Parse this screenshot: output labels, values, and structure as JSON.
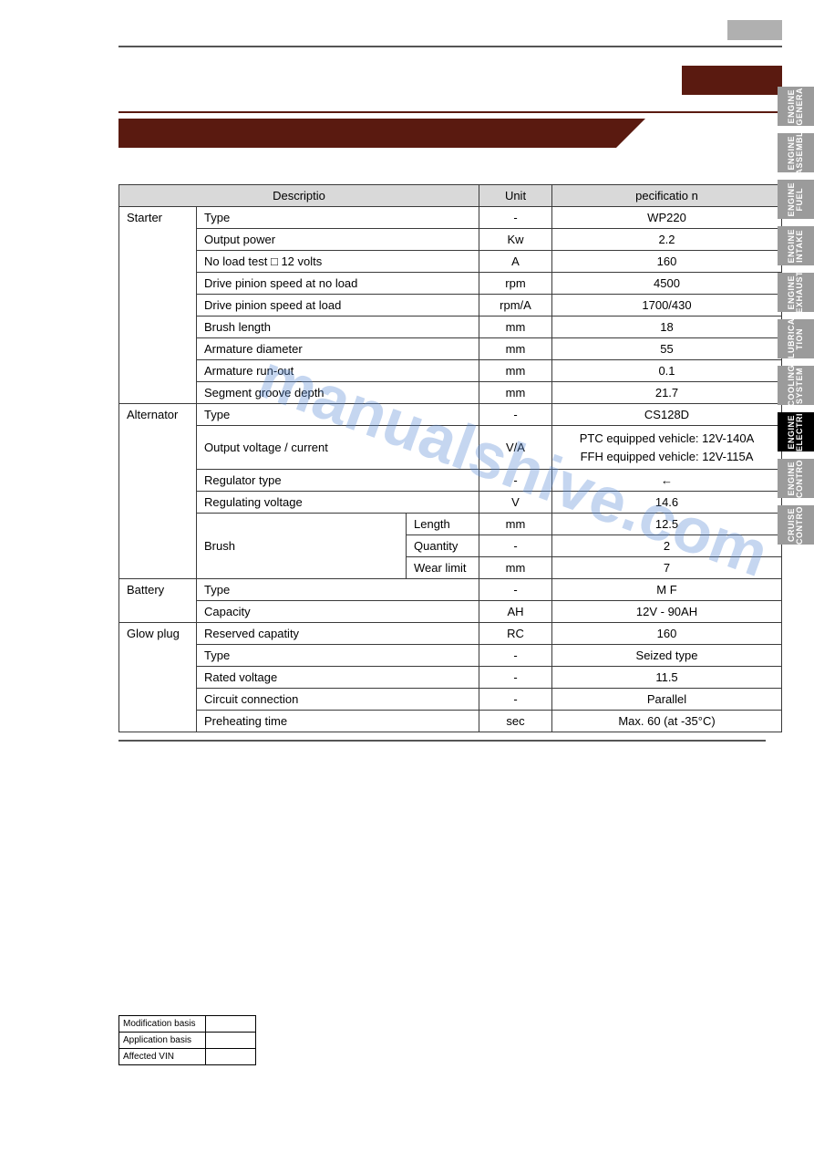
{
  "colors": {
    "maroon": "#5a1a10",
    "header_gray": "#d9d9d9",
    "tab_gray": "#9b9b9b",
    "tab_active": "#000000",
    "rule": "#555555",
    "watermark": "#5b8dd6"
  },
  "watermark": "manualshive.com",
  "spec_table": {
    "headers": {
      "desc": "Descriptio",
      "unit": "Unit",
      "spec": "pecificatio n"
    },
    "groups": [
      {
        "category": "Starter",
        "rows": [
          {
            "desc": "Type",
            "unit": "-",
            "spec": "WP220"
          },
          {
            "desc": "Output power",
            "unit": "Kw",
            "spec": "2.2"
          },
          {
            "desc": "No load test □ 12 volts",
            "unit": "A",
            "spec": "160"
          },
          {
            "desc": "Drive pinion speed at no load",
            "unit": "rpm",
            "spec": "4500"
          },
          {
            "desc": "Drive pinion speed at load",
            "unit": "rpm/A",
            "spec": "1700/430"
          },
          {
            "desc": "Brush length",
            "unit": "mm",
            "spec": "18"
          },
          {
            "desc": "Armature diameter",
            "unit": "mm",
            "spec": "55"
          },
          {
            "desc": "Armature run-out",
            "unit": "mm",
            "spec": "0.1"
          },
          {
            "desc": "Segment groove depth",
            "unit": "mm",
            "spec": "21.7"
          }
        ]
      },
      {
        "category": "Alternator",
        "rows": [
          {
            "desc": "Type",
            "unit": "-",
            "spec": "CS128D"
          },
          {
            "desc": "Output voltage / current",
            "unit": "V/A",
            "spec": "PTC equipped vehicle: 12V-140A\nFFH equipped vehicle: 12V-115A",
            "tall": true
          },
          {
            "desc": "Regulator type",
            "unit": "-",
            "spec": "←"
          },
          {
            "desc": "Regulating voltage",
            "unit": "V",
            "spec": "14.6"
          },
          {
            "desc": "Brush",
            "sub": "Length",
            "unit": "mm",
            "spec": "12.5",
            "sub_first": true
          },
          {
            "desc": "",
            "sub": "Quantity",
            "unit": "-",
            "spec": "2"
          },
          {
            "desc": "",
            "sub": "Wear limit",
            "unit": "mm",
            "spec": "7"
          }
        ],
        "brush_rowspan": 3
      },
      {
        "category": "Battery",
        "rows": [
          {
            "desc": "Type",
            "unit": "-",
            "spec": "M F"
          },
          {
            "desc": "Capacity",
            "unit": "AH",
            "spec": "12V - 90AH"
          }
        ]
      },
      {
        "category": "Glow plug",
        "rows": [
          {
            "desc": "Reserved capatity",
            "unit": "RC",
            "spec": "160"
          },
          {
            "desc": "Type",
            "unit": "-",
            "spec": "Seized type"
          },
          {
            "desc": "Rated voltage",
            "unit": "-",
            "spec": "11.5"
          },
          {
            "desc": "Circuit connection",
            "unit": "-",
            "spec": "Parallel"
          },
          {
            "desc": "Preheating time",
            "unit": "sec",
            "spec": "Max. 60 (at -35°C)"
          }
        ]
      }
    ]
  },
  "meta_table": {
    "rows": [
      {
        "k": "Modification basis",
        "v": ""
      },
      {
        "k": "Application basis",
        "v": ""
      },
      {
        "k": "Affected VIN",
        "v": ""
      }
    ]
  },
  "tabs": [
    {
      "label": "ENGINE GENERA",
      "active": false
    },
    {
      "label": "ENGINE ASSEMBL",
      "active": false
    },
    {
      "label": "ENGINE FUEL",
      "active": false
    },
    {
      "label": "ENGINE INTAKE",
      "active": false
    },
    {
      "label": "ENGINE EXHAUST",
      "active": false
    },
    {
      "label": "LUBRICA TION",
      "active": false
    },
    {
      "label": "COOLING SYSTEM",
      "active": false
    },
    {
      "label": "ENGINE ELECTRI",
      "active": true
    },
    {
      "label": "ENGINE CONTRO",
      "active": false
    },
    {
      "label": "CRUISE CONTRO",
      "active": false
    }
  ]
}
